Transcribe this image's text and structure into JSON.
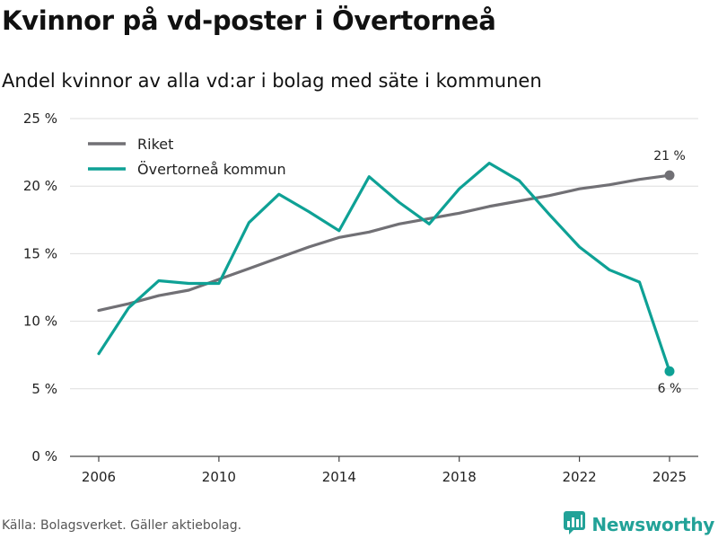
{
  "title": "Kvinnor på vd-poster i Övertorneå",
  "subtitle": "Andel kvinnor av alla vd:ar i bolag med säte i kommunen",
  "source": "Källa: Bolagsverket. Gäller aktiebolag.",
  "brand": "Newsworthy",
  "chart_data": {
    "type": "line",
    "title": "Kvinnor på vd-poster i Övertorneå",
    "subtitle": "Andel kvinnor av alla vd:ar i bolag med säte i kommunen",
    "xlabel": "",
    "ylabel": "",
    "x": [
      2006,
      2007,
      2008,
      2009,
      2010,
      2011,
      2012,
      2013,
      2014,
      2015,
      2016,
      2017,
      2018,
      2019,
      2020,
      2021,
      2022,
      2023,
      2024,
      2025
    ],
    "x_ticks": [
      2006,
      2010,
      2014,
      2018,
      2022,
      2025
    ],
    "x_tick_labels": [
      "2006",
      "2010",
      "2014",
      "2018",
      "2022",
      "2025"
    ],
    "xlim": [
      2006,
      2025
    ],
    "ylim": [
      0,
      25
    ],
    "y_ticks": [
      0,
      5,
      10,
      15,
      20,
      25
    ],
    "y_tick_labels": [
      "0 %",
      "5 %",
      "10 %",
      "15 %",
      "20 %",
      "25 %"
    ],
    "grid": true,
    "legend_position": "top-left",
    "series": [
      {
        "name": "Riket",
        "color": "#717075",
        "values": [
          10.8,
          11.3,
          11.9,
          12.3,
          13.1,
          13.9,
          14.7,
          15.5,
          16.2,
          16.6,
          17.2,
          17.6,
          18.0,
          18.5,
          18.9,
          19.3,
          19.8,
          20.1,
          20.5,
          20.8
        ],
        "end_label": "21 %",
        "end_label_position": "above"
      },
      {
        "name": "Övertorneå kommun",
        "color": "#0ea195",
        "values": [
          7.6,
          11.0,
          13.0,
          12.8,
          12.8,
          17.3,
          19.4,
          18.1,
          16.7,
          20.7,
          18.8,
          17.2,
          19.8,
          21.7,
          20.4,
          17.9,
          15.5,
          13.8,
          12.9,
          6.3
        ],
        "end_label": "6 %",
        "end_label_position": "below"
      }
    ]
  }
}
